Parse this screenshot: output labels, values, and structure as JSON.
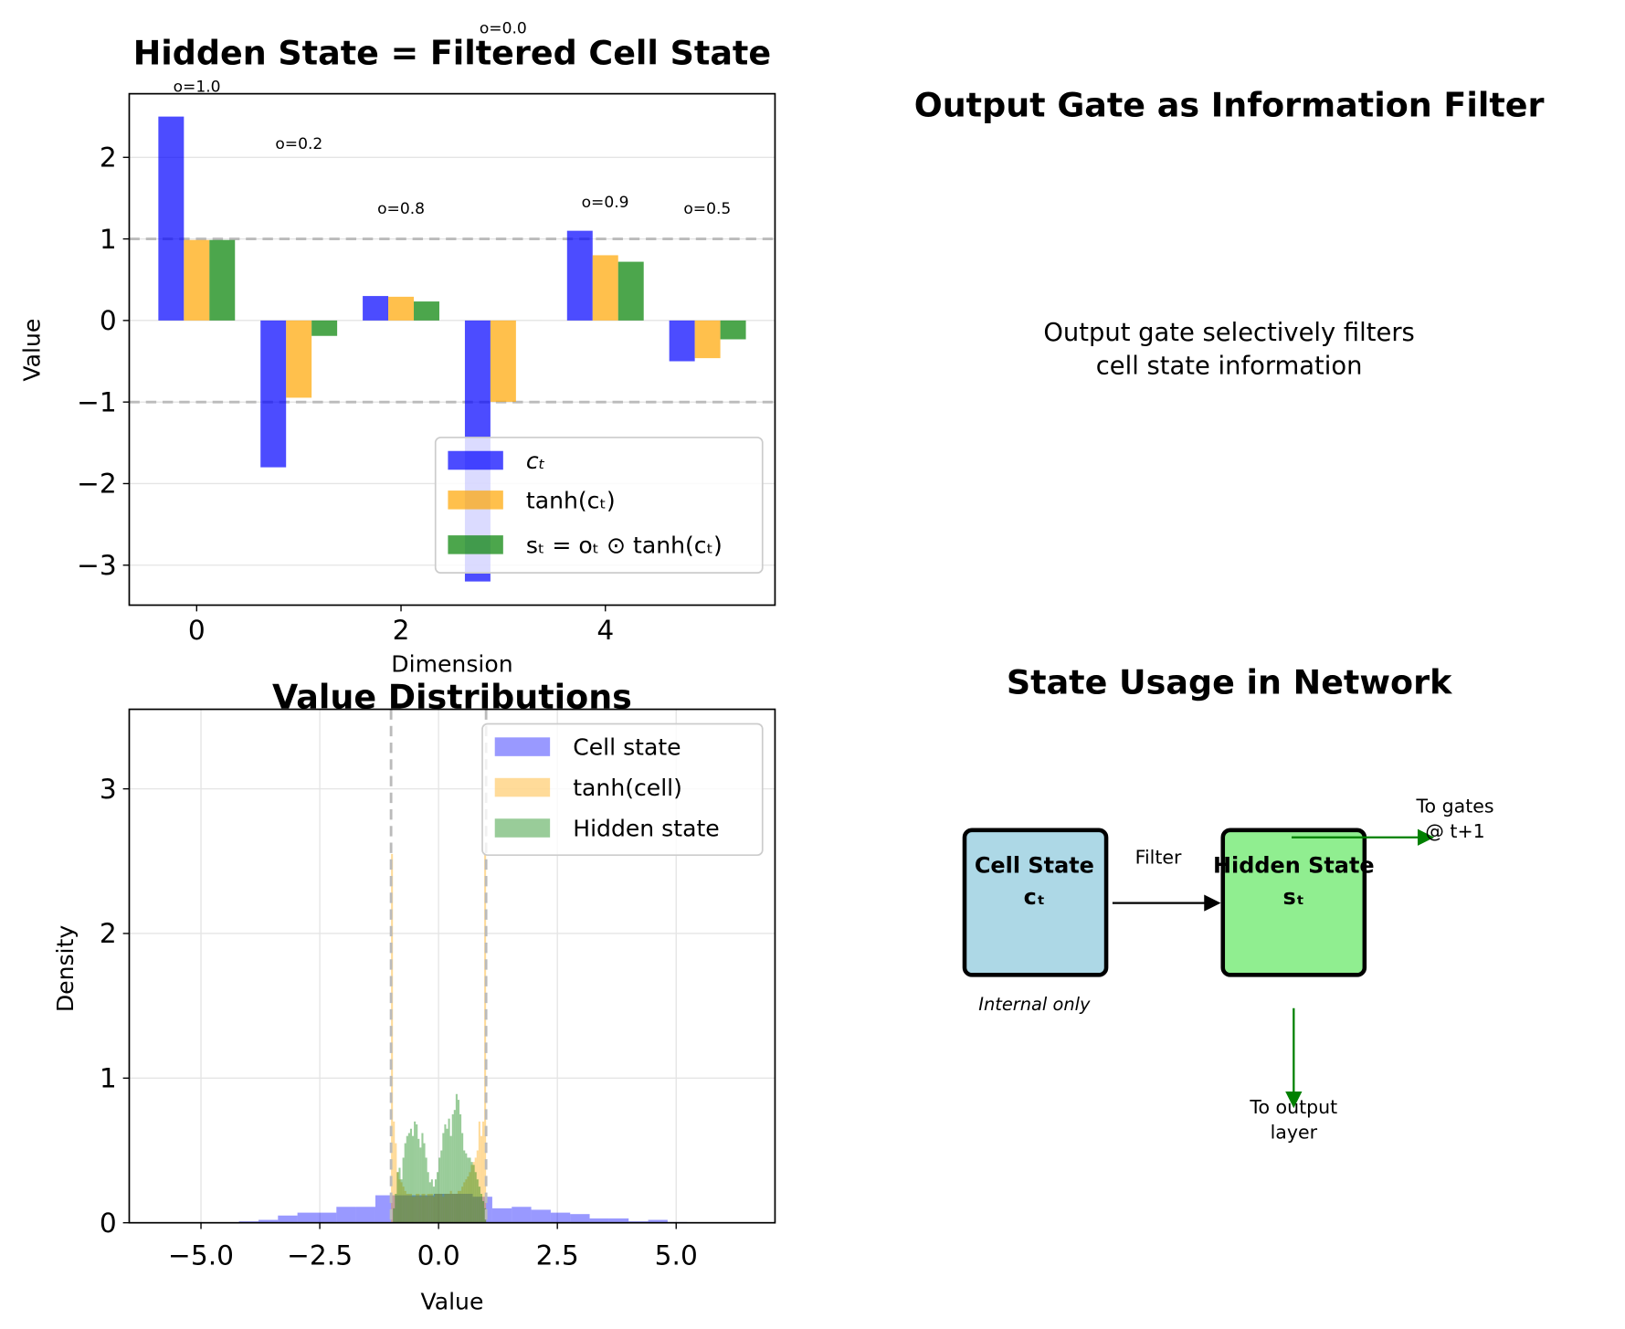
{
  "chart_data": [
    {
      "type": "bar",
      "title": "Hidden State = Filtered Cell State",
      "xlabel": "Dimension",
      "ylabel": "Value",
      "categories": [
        0,
        1,
        2,
        3,
        4,
        5
      ],
      "xticks": [
        "0",
        "2",
        "4"
      ],
      "yticks": [
        "2",
        "1",
        "0",
        "−1",
        "−2",
        "−3"
      ],
      "xlim": [
        -0.66,
        5.66
      ],
      "ylim": [
        -3.49,
        2.78
      ],
      "reference_lines": [
        1,
        -1
      ],
      "series": [
        {
          "name": "cₜ",
          "color": "#0000ff",
          "values": [
            2.5,
            -1.8,
            0.3,
            -3.2,
            1.1,
            -0.5
          ]
        },
        {
          "name": "tanh(cₜ)",
          "color": "#ffa500",
          "values": [
            0.987,
            -0.947,
            0.291,
            -0.997,
            0.8,
            -0.462
          ]
        },
        {
          "name": "sₜ = oₜ ⊙ tanh(cₜ)",
          "color": "#008000",
          "values": [
            0.987,
            -0.189,
            0.233,
            0.0,
            0.72,
            -0.231
          ]
        }
      ],
      "annotations": [
        "o=1.0",
        "o=0.2",
        "o=0.8",
        "o=0.0",
        "o=0.9",
        "o=0.5"
      ],
      "legend": "top-right",
      "grid": true
    },
    {
      "type": "histogram",
      "title": "Value Distributions",
      "xlabel": "Value",
      "ylabel": "Density",
      "xticks": [
        "−5.0",
        "−2.5",
        "0.0",
        "2.5",
        "5.0"
      ],
      "yticks": [
        "0",
        "1",
        "2",
        "3"
      ],
      "xlim": [
        -6.51,
        7.08
      ],
      "ylim": [
        0,
        3.55
      ],
      "reference_lines": [
        -1,
        1
      ],
      "legend": "top-right",
      "grid": true,
      "series": [
        {
          "name": "Cell state",
          "color": "#0000ff",
          "bin_start": -4.2,
          "bin_width": 0.41,
          "values": [
            0.01,
            0.02,
            0.05,
            0.07,
            0.07,
            0.11,
            0.11,
            0.19,
            0.19,
            0.19,
            0.2,
            0.2,
            0.18,
            0.1,
            0.11,
            0.09,
            0.07,
            0.06,
            0.03,
            0.03,
            0.01,
            0.02,
            0.005
          ]
        },
        {
          "name": "tanh(cell)",
          "color": "#ffa500",
          "bin_start": -1.0,
          "bin_width": 0.04,
          "values": [
            2.55,
            0.7,
            0.55,
            0.35,
            0.3,
            0.28,
            0.25,
            0.22,
            0.2,
            0.2,
            0.2,
            0.18,
            0.18,
            0.2,
            0.2,
            0.18,
            0.2,
            0.2,
            0.18,
            0.2,
            0.2,
            0.2,
            0.18,
            0.2,
            0.2,
            0.2,
            0.2,
            0.18,
            0.2,
            0.2,
            0.2,
            0.22,
            0.2,
            0.2,
            0.2,
            0.22,
            0.22,
            0.25,
            0.28,
            0.3,
            0.32,
            0.35,
            0.4,
            0.42,
            0.45,
            0.5,
            0.7,
            0.6,
            0.7,
            2.55
          ]
        },
        {
          "name": "Hidden state",
          "color": "#008000",
          "bin_start": -1.0,
          "bin_width": 0.04,
          "values": [
            0.0,
            0.1,
            0.2,
            0.35,
            0.38,
            0.3,
            0.45,
            0.55,
            0.6,
            0.62,
            0.65,
            0.6,
            0.7,
            0.68,
            0.58,
            0.52,
            0.62,
            0.55,
            0.45,
            0.35,
            0.28,
            0.3,
            0.25,
            0.3,
            0.35,
            0.45,
            0.5,
            0.62,
            0.68,
            0.65,
            0.72,
            0.6,
            0.75,
            0.78,
            0.89,
            0.85,
            0.75,
            0.62,
            0.5,
            0.48,
            0.45,
            0.45,
            0.42,
            0.4,
            0.35,
            0.3,
            0.25,
            0.2,
            0.15,
            0.1
          ]
        }
      ]
    }
  ],
  "panels": {
    "top_right": {
      "title": "Output Gate as Information Filter",
      "line1": "Output gate selectively filters",
      "line2": "cell state information"
    },
    "diagram": {
      "title": "State Usage in Network",
      "cell_box": {
        "label": "Cell State",
        "symbol": "cₜ",
        "color": "#add8e6",
        "note": "Internal only"
      },
      "hidden_box": {
        "label": "Hidden State",
        "symbol": "sₜ",
        "color": "#90ee90"
      },
      "filter_label": "Filter",
      "gates_label_1": "To gates",
      "gates_label_2": "@ t+1",
      "output_label_1": "To output",
      "output_label_2": "layer",
      "arrow_color": "#008000"
    }
  }
}
